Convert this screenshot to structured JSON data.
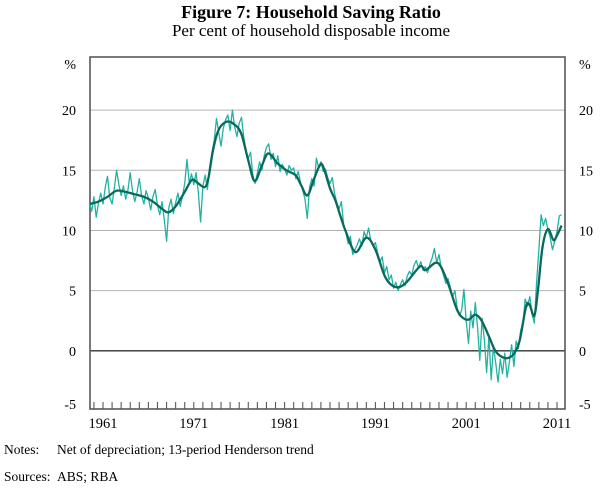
{
  "footer": {
    "notes_label": "Notes:",
    "notes_text": "Net of depreciation; 13-period Henderson trend",
    "sources_label": "Sources:",
    "sources_text": "ABS; RBA"
  },
  "chart_data": {
    "type": "line",
    "title": "Figure 7: Household Saving Ratio",
    "subtitle": "Per cent of household disposable income",
    "unit_label_left": "%",
    "unit_label_right": "%",
    "ylim": [
      -5,
      24.5
    ],
    "yticks": [
      20,
      15,
      10,
      5,
      0,
      -5
    ],
    "xticks_labeled": [
      1961,
      1971,
      1981,
      1991,
      2001,
      2011
    ],
    "xtick_minor_step": 1,
    "x_range": [
      1959.5,
      2011.9
    ],
    "grid": "horizontal-light",
    "zero_line": true,
    "legend": "none",
    "colors": {
      "quarterly": "#22b2a2",
      "trend": "#0a695c",
      "frame": "#58595b",
      "gridline": "#b3b3b3",
      "zero": "#333333",
      "text": "#000000"
    },
    "series": [
      {
        "name": "Household saving ratio (quarterly)",
        "style": "noisy-line",
        "color_key": "quarterly",
        "start": 1959.5,
        "step": 0.25,
        "values": [
          12.3,
          11.6,
          12.8,
          11.1,
          12.3,
          13.1,
          12.2,
          13.6,
          14.5,
          12.7,
          12.2,
          13.5,
          15.0,
          13.8,
          12.9,
          13.7,
          12.6,
          13.4,
          14.8,
          13.3,
          12.4,
          13.2,
          14.3,
          12.9,
          12.2,
          13.3,
          12.7,
          11.7,
          12.8,
          13.4,
          12.1,
          11.3,
          12.4,
          10.9,
          9.1,
          11.9,
          12.6,
          11.4,
          12.3,
          13.1,
          12.0,
          12.8,
          13.9,
          15.9,
          13.9,
          14.7,
          13.8,
          14.8,
          13.2,
          10.7,
          13.7,
          14.6,
          13.4,
          15.3,
          16.5,
          17.5,
          19.3,
          18.1,
          17.0,
          18.5,
          19.2,
          19.6,
          18.3,
          20.0,
          18.6,
          17.8,
          18.9,
          19.4,
          17.8,
          16.6,
          16.0,
          16.5,
          14.6,
          13.9,
          14.8,
          15.7,
          15.0,
          16.2,
          16.9,
          17.2,
          15.9,
          16.4,
          15.3,
          16.2,
          14.9,
          15.5,
          15.1,
          14.6,
          15.4,
          15.0,
          15.2,
          14.3,
          14.9,
          14.0,
          13.3,
          12.6,
          11.0,
          13.6,
          14.3,
          13.7,
          16.0,
          15.2,
          15.7,
          14.9,
          15.1,
          14.4,
          13.9,
          14.4,
          13.1,
          12.3,
          11.8,
          12.4,
          10.5,
          9.8,
          8.9,
          9.5,
          8.0,
          8.4,
          8.8,
          9.3,
          8.7,
          9.9,
          9.4,
          10.2,
          9.1,
          8.7,
          9.0,
          8.1,
          7.4,
          7.8,
          6.5,
          7.0,
          5.9,
          6.3,
          5.2,
          5.7,
          5.0,
          5.5,
          5.9,
          5.4,
          6.2,
          6.6,
          6.3,
          7.1,
          7.5,
          6.9,
          7.4,
          6.7,
          7.0,
          6.5,
          7.2,
          7.7,
          8.5,
          7.3,
          8.0,
          6.9,
          6.3,
          5.6,
          6.0,
          5.3,
          4.5,
          5.0,
          3.6,
          2.9,
          3.4,
          5.1,
          2.5,
          0.6,
          3.3,
          1.9,
          4.0,
          1.9,
          -0.8,
          2.7,
          0.9,
          -1.8,
          1.2,
          -2.4,
          0.4,
          -1.0,
          -2.6,
          -0.7,
          -1.9,
          -0.2,
          -2.2,
          -1.0,
          0.5,
          -1.3,
          0.8,
          0.2,
          1.7,
          2.3,
          4.3,
          3.7,
          4.5,
          3.1,
          2.3,
          5.7,
          8.3,
          11.3,
          10.4,
          11.0,
          10.1,
          9.4,
          8.4,
          9.1,
          9.9,
          11.2,
          11.3
        ]
      },
      {
        "name": "13-period Henderson trend",
        "style": "smooth-line",
        "color_key": "trend",
        "points": [
          [
            1959.5,
            12.2
          ],
          [
            1960.5,
            12.4
          ],
          [
            1961.5,
            12.8
          ],
          [
            1962.5,
            13.3
          ],
          [
            1963.5,
            13.2
          ],
          [
            1964.5,
            13.0
          ],
          [
            1965.5,
            12.8
          ],
          [
            1966.5,
            12.4
          ],
          [
            1967.5,
            11.8
          ],
          [
            1968.2,
            11.5
          ],
          [
            1969.0,
            12.0
          ],
          [
            1970.0,
            13.2
          ],
          [
            1970.8,
            14.2
          ],
          [
            1971.5,
            13.9
          ],
          [
            1972.2,
            13.6
          ],
          [
            1972.6,
            14.3
          ],
          [
            1973.1,
            16.6
          ],
          [
            1973.7,
            18.3
          ],
          [
            1974.5,
            19.0
          ],
          [
            1975.3,
            18.9
          ],
          [
            1976.2,
            18.1
          ],
          [
            1977.0,
            15.8
          ],
          [
            1977.7,
            14.1
          ],
          [
            1978.5,
            15.4
          ],
          [
            1979.2,
            16.4
          ],
          [
            1980.2,
            15.6
          ],
          [
            1981.2,
            15.0
          ],
          [
            1982.2,
            14.6
          ],
          [
            1982.8,
            13.8
          ],
          [
            1983.5,
            12.9
          ],
          [
            1984.2,
            14.2
          ],
          [
            1984.8,
            15.3
          ],
          [
            1985.2,
            15.4
          ],
          [
            1986.0,
            13.5
          ],
          [
            1986.6,
            12.5
          ],
          [
            1987.1,
            11.3
          ],
          [
            1987.7,
            10.0
          ],
          [
            1988.8,
            8.2
          ],
          [
            1990.0,
            9.4
          ],
          [
            1991.0,
            8.4
          ],
          [
            1992.1,
            6.1
          ],
          [
            1993.2,
            5.3
          ],
          [
            1994.3,
            5.6
          ],
          [
            1995.9,
            7.0
          ],
          [
            1996.5,
            6.7
          ],
          [
            1997.6,
            7.3
          ],
          [
            1998.2,
            7.0
          ],
          [
            1999.0,
            5.6
          ],
          [
            2000.0,
            3.4
          ],
          [
            2000.7,
            2.7
          ],
          [
            2001.3,
            2.6
          ],
          [
            2002.0,
            3.0
          ],
          [
            2002.7,
            2.5
          ],
          [
            2003.5,
            1.2
          ],
          [
            2004.2,
            0.0
          ],
          [
            2004.9,
            -0.5
          ],
          [
            2005.6,
            -0.6
          ],
          [
            2006.3,
            -0.2
          ],
          [
            2006.9,
            0.9
          ],
          [
            2007.6,
            3.7
          ],
          [
            2008.0,
            3.8
          ],
          [
            2008.5,
            2.9
          ],
          [
            2008.9,
            5.0
          ],
          [
            2009.4,
            8.6
          ],
          [
            2010.0,
            10.1
          ],
          [
            2010.6,
            9.2
          ],
          [
            2011.0,
            9.6
          ],
          [
            2011.5,
            10.4
          ]
        ]
      }
    ]
  }
}
